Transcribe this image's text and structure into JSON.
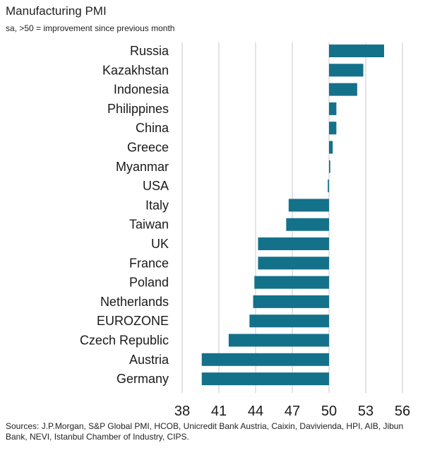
{
  "chart_data": {
    "type": "bar",
    "orientation": "horizontal",
    "title": "Manufacturing PMI",
    "subtitle": "sa, >50 = improvement since previous month",
    "baseline": 50,
    "xlim": [
      38,
      56
    ],
    "xticks": [
      38,
      41,
      44,
      47,
      50,
      53,
      56
    ],
    "grid": true,
    "bar_color": "#14718a",
    "categories": [
      "Russia",
      "Kazakhstan",
      "Indonesia",
      "Philippines",
      "China",
      "Greece",
      "Myanmar",
      "USA",
      "Italy",
      "Taiwan",
      "UK",
      "France",
      "Poland",
      "Netherlands",
      "EUROZONE",
      "Czech Republic",
      "Austria",
      "Germany"
    ],
    "values": [
      54.5,
      52.8,
      52.3,
      50.6,
      50.6,
      50.3,
      50.1,
      49.9,
      46.7,
      46.5,
      44.2,
      44.2,
      43.9,
      43.8,
      43.5,
      41.8,
      39.6,
      39.6
    ],
    "source": "Sources: J.P.Morgan, S&P Global PMI, HCOB, Unicredit Bank Austria, Caixin, Davivienda, HPI, AIB, Jibun Bank, NEVI, Istanbul Chamber of Industry, CIPS."
  }
}
